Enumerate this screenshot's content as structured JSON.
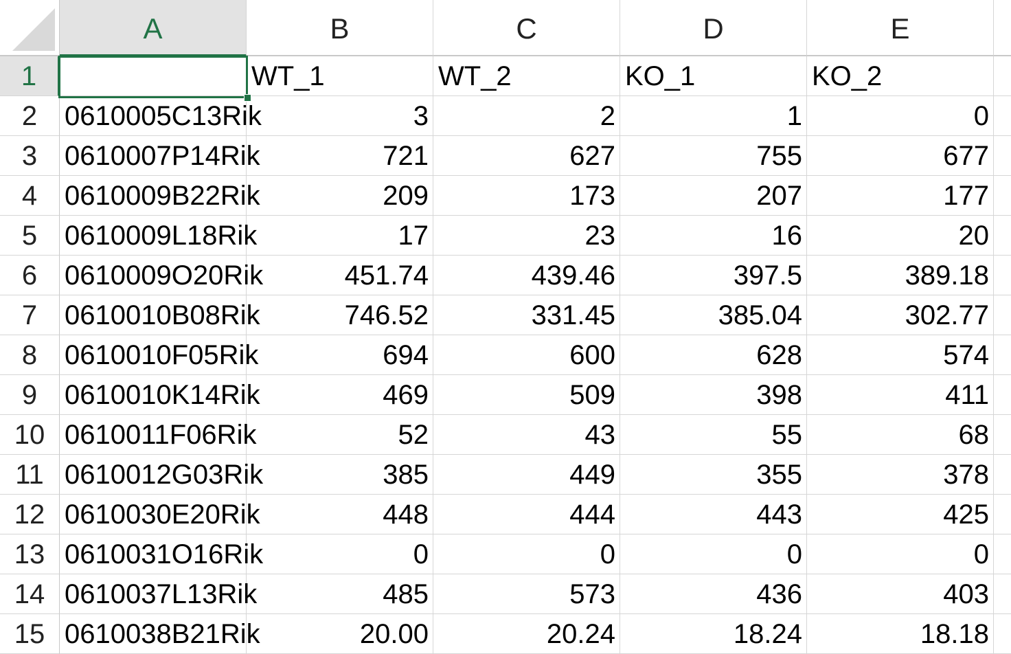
{
  "columns": [
    "A",
    "B",
    "C",
    "D",
    "E"
  ],
  "selected_column": "A",
  "selected_row": "1",
  "selected_cell": "A1",
  "rows": [
    {
      "num": "1",
      "cells": [
        "",
        "WT_1",
        "WT_2",
        "KO_1",
        "KO_2"
      ]
    },
    {
      "num": "2",
      "cells": [
        "0610005C13Rik",
        "3",
        "2",
        "1",
        "0"
      ]
    },
    {
      "num": "3",
      "cells": [
        "0610007P14Rik",
        "721",
        "627",
        "755",
        "677"
      ]
    },
    {
      "num": "4",
      "cells": [
        "0610009B22Rik",
        "209",
        "173",
        "207",
        "177"
      ]
    },
    {
      "num": "5",
      "cells": [
        "0610009L18Rik",
        "17",
        "23",
        "16",
        "20"
      ]
    },
    {
      "num": "6",
      "cells": [
        "0610009O20Rik",
        "451.74",
        "439.46",
        "397.5",
        "389.18"
      ]
    },
    {
      "num": "7",
      "cells": [
        "0610010B08Rik",
        "746.52",
        "331.45",
        "385.04",
        "302.77"
      ]
    },
    {
      "num": "8",
      "cells": [
        "0610010F05Rik",
        "694",
        "600",
        "628",
        "574"
      ]
    },
    {
      "num": "9",
      "cells": [
        "0610010K14Rik",
        "469",
        "509",
        "398",
        "411"
      ]
    },
    {
      "num": "10",
      "cells": [
        "0610011F06Rik",
        "52",
        "43",
        "55",
        "68"
      ]
    },
    {
      "num": "11",
      "cells": [
        "0610012G03Rik",
        "385",
        "449",
        "355",
        "378"
      ]
    },
    {
      "num": "12",
      "cells": [
        "0610030E20Rik",
        "448",
        "444",
        "443",
        "425"
      ]
    },
    {
      "num": "13",
      "cells": [
        "0610031O16Rik",
        "0",
        "0",
        "0",
        "0"
      ]
    },
    {
      "num": "14",
      "cells": [
        "0610037L13Rik",
        "485",
        "573",
        "436",
        "403"
      ]
    },
    {
      "num": "15",
      "cells": [
        "0610038B21Rik",
        "20.00",
        "20.24",
        "18.24",
        "18.18"
      ]
    }
  ],
  "colors": {
    "accent": "#217346",
    "header_selected_bg": "#e3e3e3",
    "gridline": "#d6d6d6"
  }
}
